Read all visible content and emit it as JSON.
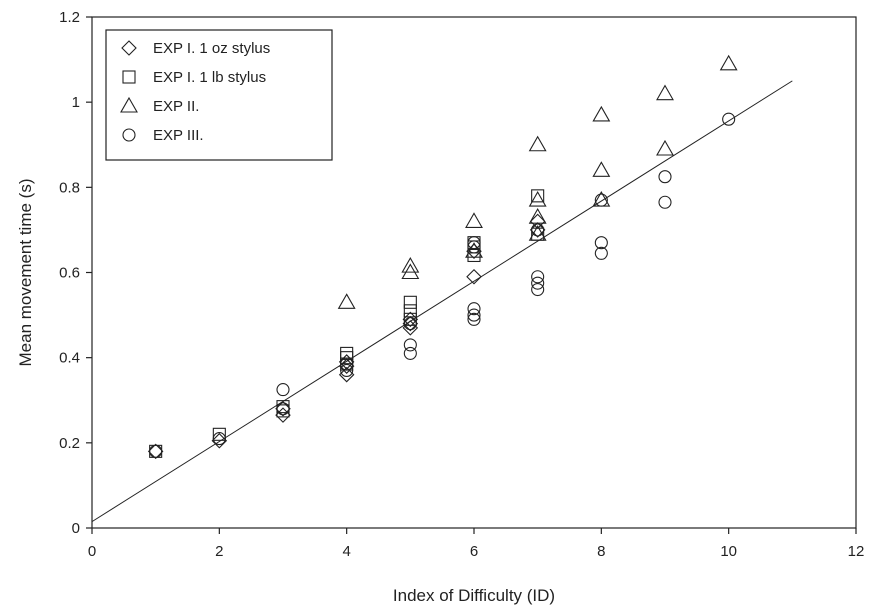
{
  "chart_data": {
    "type": "scatter",
    "xlabel": "Index of Difficulty (ID)",
    "ylabel": "Mean movement time (s)",
    "xlim": [
      0,
      12
    ],
    "ylim": [
      0,
      1.2
    ],
    "x_ticks": [
      0,
      2,
      4,
      6,
      8,
      10,
      12
    ],
    "y_ticks": [
      0,
      0.2,
      0.4,
      0.6,
      0.8,
      1,
      1.2
    ],
    "x_tick_labels": [
      "0",
      "2",
      "4",
      "6",
      "8",
      "10",
      "12"
    ],
    "y_tick_labels": [
      "0",
      "0.2",
      "0.4",
      "0.6",
      "0.8",
      "1",
      "1.2"
    ],
    "grid": false,
    "legend_position": "top-left",
    "series": [
      {
        "name": "EXP I. 1 oz stylus",
        "marker": "diamond",
        "points": [
          [
            1,
            0.18
          ],
          [
            2,
            0.205
          ],
          [
            3,
            0.265
          ],
          [
            3,
            0.28
          ],
          [
            4,
            0.36
          ],
          [
            4,
            0.38
          ],
          [
            4,
            0.39
          ],
          [
            5,
            0.47
          ],
          [
            5,
            0.48
          ],
          [
            5,
            0.49
          ],
          [
            6,
            0.59
          ],
          [
            6,
            0.65
          ],
          [
            7,
            0.7
          ],
          [
            7,
            0.72
          ]
        ]
      },
      {
        "name": "EXP I. 1 lb stylus",
        "marker": "square",
        "points": [
          [
            1,
            0.18
          ],
          [
            2,
            0.22
          ],
          [
            3,
            0.275
          ],
          [
            3,
            0.285
          ],
          [
            4,
            0.385
          ],
          [
            4,
            0.4
          ],
          [
            4,
            0.41
          ],
          [
            5,
            0.49
          ],
          [
            5,
            0.51
          ],
          [
            5,
            0.53
          ],
          [
            6,
            0.64
          ],
          [
            6,
            0.66
          ],
          [
            6,
            0.67
          ],
          [
            7,
            0.69
          ],
          [
            7,
            0.78
          ]
        ]
      },
      {
        "name": "EXP II.",
        "marker": "triangle",
        "points": [
          [
            4,
            0.53
          ],
          [
            5,
            0.6
          ],
          [
            5,
            0.615
          ],
          [
            6,
            0.65
          ],
          [
            6,
            0.72
          ],
          [
            7,
            0.69
          ],
          [
            7,
            0.73
          ],
          [
            7,
            0.77
          ],
          [
            7,
            0.9
          ],
          [
            8,
            0.77
          ],
          [
            8,
            0.84
          ],
          [
            8,
            0.97
          ],
          [
            9,
            0.89
          ],
          [
            9,
            1.02
          ],
          [
            10,
            1.09
          ]
        ]
      },
      {
        "name": "EXP III.",
        "marker": "circle",
        "points": [
          [
            1,
            0.18
          ],
          [
            2,
            0.21
          ],
          [
            3,
            0.28
          ],
          [
            3,
            0.325
          ],
          [
            4,
            0.37
          ],
          [
            4,
            0.385
          ],
          [
            5,
            0.41
          ],
          [
            5,
            0.43
          ],
          [
            5,
            0.48
          ],
          [
            6,
            0.49
          ],
          [
            6,
            0.5
          ],
          [
            6,
            0.515
          ],
          [
            6,
            0.66
          ],
          [
            6,
            0.67
          ],
          [
            7,
            0.56
          ],
          [
            7,
            0.575
          ],
          [
            7,
            0.59
          ],
          [
            7,
            0.7
          ],
          [
            8,
            0.645
          ],
          [
            8,
            0.67
          ],
          [
            8,
            0.77
          ],
          [
            9,
            0.765
          ],
          [
            9,
            0.825
          ],
          [
            10,
            0.96
          ]
        ]
      }
    ],
    "fit_line": {
      "type": "linear",
      "points": [
        [
          0,
          0.015
        ],
        [
          11,
          1.05
        ]
      ]
    }
  }
}
